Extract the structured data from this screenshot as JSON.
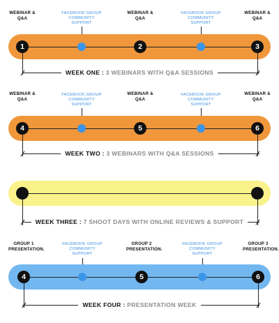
{
  "weeks": [
    {
      "labels": [
        "WEBINAR & Q&A",
        "FACEBOOK GROUP COMMUNITY SUPPORT",
        "WEBINAR & Q&A",
        "FACEBOOK GROUP COMMUNITY SUPPORT",
        "WEBINAR & Q&A"
      ],
      "nodes": [
        "1",
        "2",
        "3"
      ],
      "heading": "WEEK ONE :",
      "subtitle": "3 WEBINARS WITH Q&A SESSIONS",
      "bar_color": "#f0973c"
    },
    {
      "labels": [
        "WEBINAR & Q&A",
        "FACEBOOK GROUP COMMUNITY SUPPORT",
        "WEBINAR & Q&A",
        "FACEBOOK GROUP COMMUNITY SUPPORT",
        "WEBINAR & Q&A"
      ],
      "nodes": [
        "4",
        "5",
        "6"
      ],
      "heading": "WEEK TWO :",
      "subtitle": "3 WEBINARS WITH Q&A SESSIONS",
      "bar_color": "#f0973c"
    },
    {
      "nodes": [
        "",
        ""
      ],
      "heading": "WEEK THREE :",
      "subtitle": "7 SHOOT DAYS WITH ONLINE REVIEWS & SUPPORT",
      "bar_color": "#faf28a"
    },
    {
      "labels": [
        "GROUP 1 PRESENTATION.",
        "FACEBOOK GROUP COMMUNITY SUPPORT",
        "GROUP 2 PRESENTATION.",
        "FACEBOOK GROUP COMMUNITY SUPPORT",
        "GROUP 3 PRESENTATION."
      ],
      "nodes": [
        "4",
        "5",
        "6"
      ],
      "heading": "WEEK FOUR :",
      "subtitle": "PRESENTATION WEEK",
      "bar_color": "#73b7f0"
    }
  ],
  "colors": {
    "accent_blue": "#3b95e8",
    "label_blue": "#3b8fe3",
    "node_black": "#111111",
    "subtitle_grey": "#8c8c8c"
  }
}
